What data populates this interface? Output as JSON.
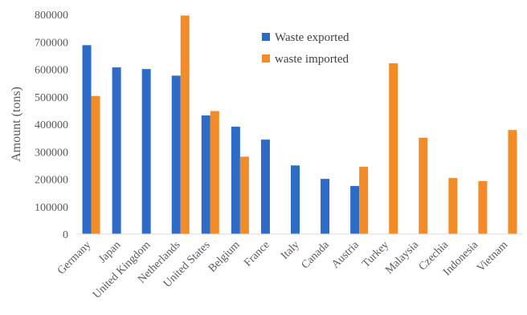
{
  "chart_data": {
    "type": "bar",
    "categories": [
      "Germany",
      "Japan",
      "United Kingdom",
      "Netherlands",
      "United States",
      "Belgium",
      "France",
      "Italy",
      "Canada",
      "Austria",
      "Turkey",
      "Malaysia",
      "Czechia",
      "Indonesia",
      "Vietnam"
    ],
    "series": [
      {
        "name": "Waste exported",
        "color": "#2e6bc6",
        "values": [
          688000,
          607000,
          601000,
          577000,
          432000,
          391000,
          344000,
          250000,
          201000,
          175000,
          null,
          null,
          null,
          null,
          null
        ]
      },
      {
        "name": "waste imported",
        "color": "#f28c28",
        "values": [
          503000,
          null,
          null,
          796000,
          448000,
          282000,
          null,
          null,
          null,
          245000,
          622000,
          351000,
          204000,
          193000,
          379000
        ]
      }
    ],
    "title": "",
    "xlabel": "",
    "ylabel": "Amount (tons)",
    "ylim": [
      0,
      800000
    ],
    "yticks": [
      "0",
      "100000",
      "200000",
      "300000",
      "400000",
      "500000",
      "600000",
      "700000",
      "800000"
    ],
    "grid": false,
    "legend": "top-right inside"
  }
}
